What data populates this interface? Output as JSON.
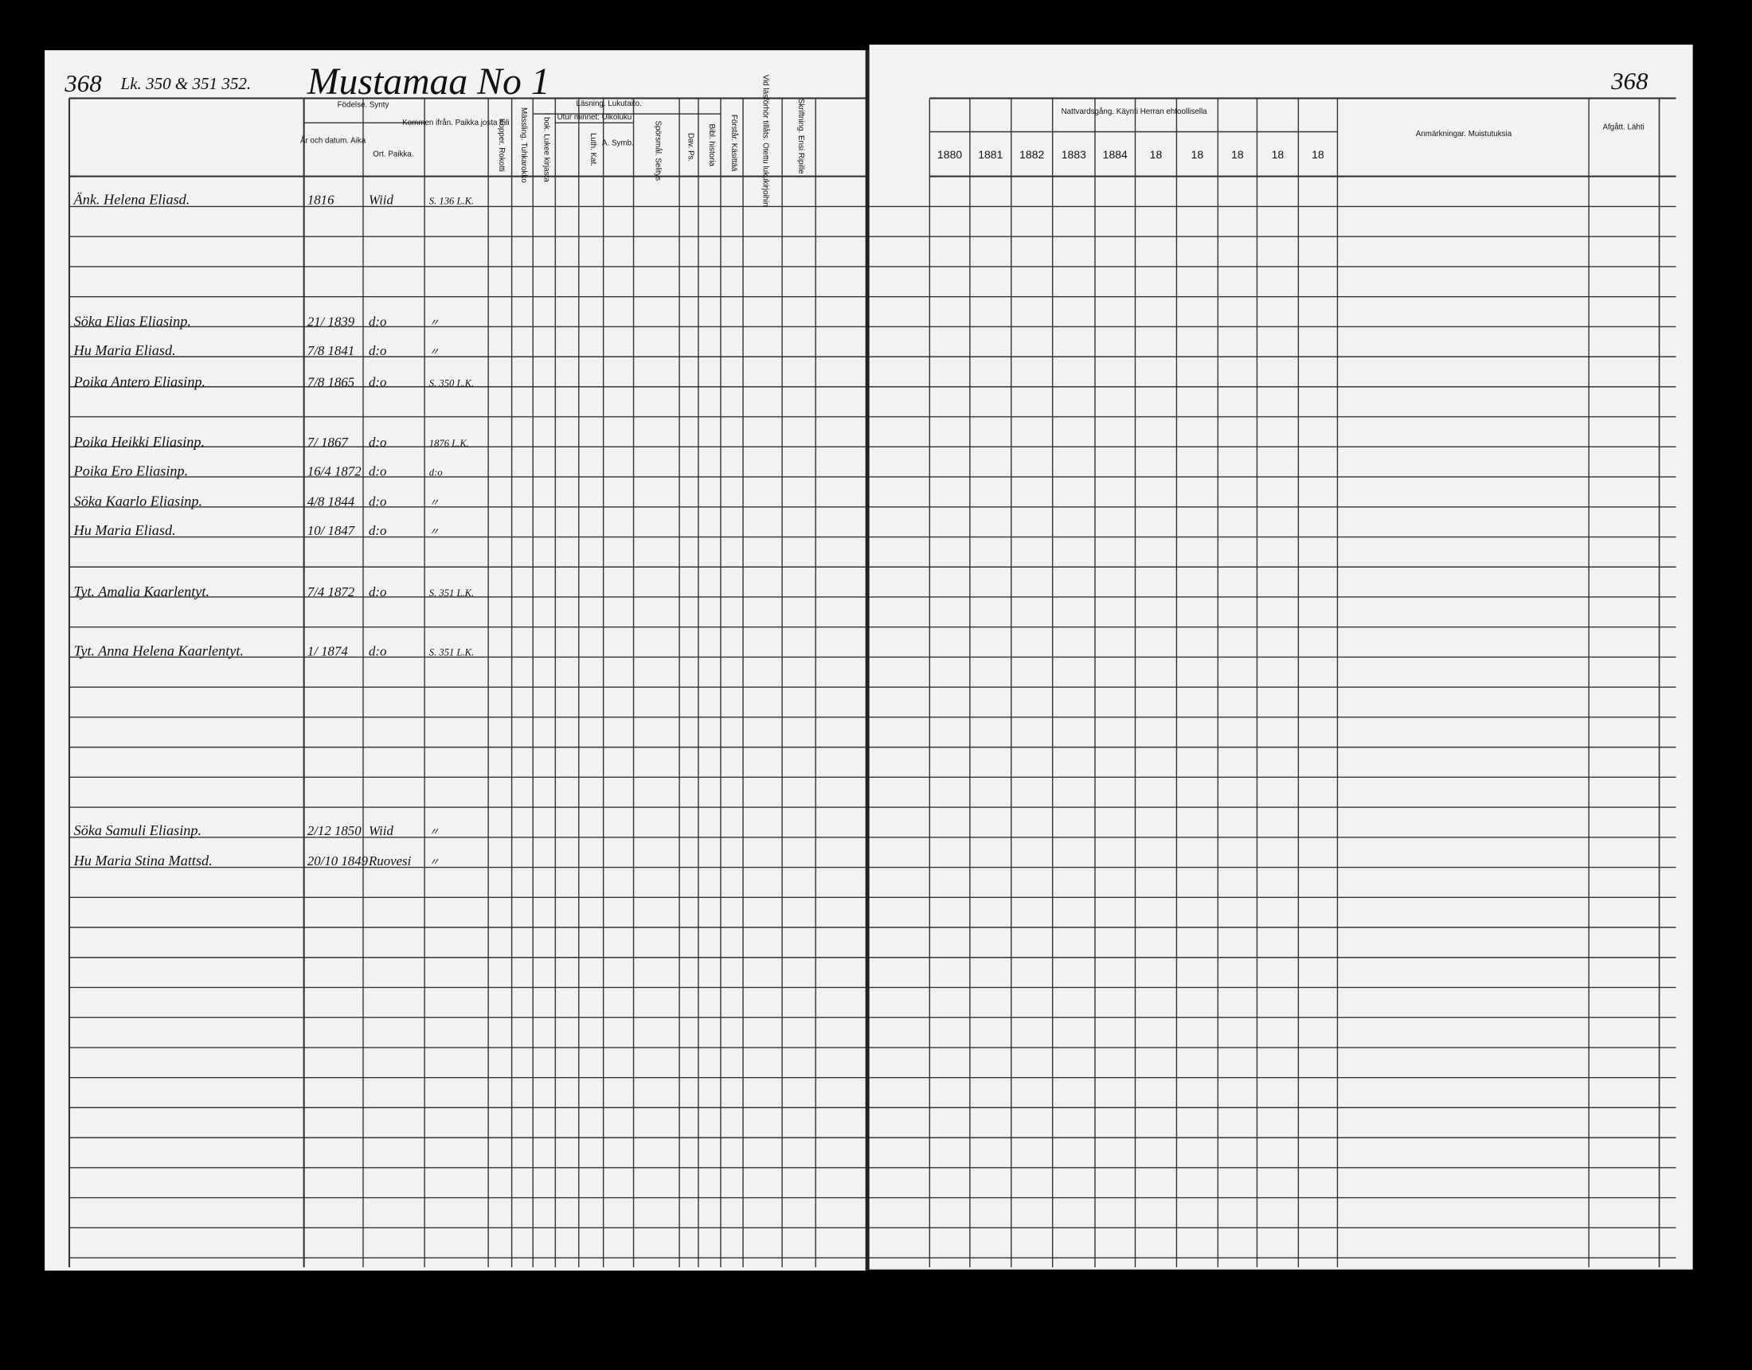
{
  "header": {
    "page_left": "368",
    "heading": "Lk. 350 & 351 352.",
    "farm": "Mustamaa No 1",
    "page_right": "368"
  },
  "columns_left": [
    "Födelse. Synty",
    "År och datum. Aika",
    "Ort. Paikka.",
    "Kommen ifrån. Paikka josta tuli",
    "Kopper. Rokotti",
    "Mässling. Tuhkarokko",
    "Läsning. Lukutaito.",
    "I bok. Lukee kirjasta",
    "Utur minnet: Ulkoluku",
    "Luth. Kat.",
    "A. Symb.",
    "Spörsmål. Selitys",
    "Dav. Ps.",
    "Bibl. historia",
    "Förstår. Käsittää",
    "Vid läsförhör tillåts. Otettu lukukirjoihin",
    "Skriftning. Ensi Ripille"
  ],
  "columns_right": [
    "Nattvardsgång. Käynti Herran ehtoollisella",
    "Anmärkningar. Muistutuksia",
    "Afgått. Lähti"
  ],
  "years": [
    "1880",
    "1881",
    "1882",
    "1883",
    "1884",
    "18",
    "18",
    "18",
    "18",
    "18"
  ],
  "entries": [
    {
      "name": "Änk. Helena Eliasd.",
      "born": "1816",
      "place": "Wiid",
      "from": "S. 136 L.K."
    },
    {
      "name": "Söka Elias Eliasinp.",
      "born": "21/ 1839",
      "place": "d:o",
      "from": "〃"
    },
    {
      "name": "Hu Maria Eliasd.",
      "born": "7/8 1841",
      "place": "d:o",
      "from": "〃"
    },
    {
      "name": "Poika Antero Eliasinp.",
      "born": "7/8 1865",
      "place": "d:o",
      "from": "S. 350 L.K."
    },
    {
      "name": "Poika Heikki Eliasinp.",
      "born": "7/ 1867",
      "place": "d:o",
      "from": "1876 L.K."
    },
    {
      "name": "Poika Ero Eliasinp.",
      "born": "16/4 1872",
      "place": "d:o",
      "from": "d:o"
    },
    {
      "name": "Söka Kaarlo Eliasinp.",
      "born": "4/8 1844",
      "place": "d:o",
      "from": "〃"
    },
    {
      "name": "Hu Maria Eliasd.",
      "born": "10/ 1847",
      "place": "d:o",
      "from": "〃"
    },
    {
      "name": "Tyt. Amalia Kaarlentyt.",
      "born": "7/4 1872",
      "place": "d:o",
      "from": "S. 351 L.K."
    },
    {
      "name": "Tyt. Anna Helena Kaarlentyt.",
      "born": "1/ 1874",
      "place": "d:o",
      "from": "S. 351 L.K."
    },
    {
      "name": "Söka Samuli Eliasinp.",
      "born": "2/12 1850",
      "place": "Wiid",
      "from": "〃"
    },
    {
      "name": "Hu Maria Stina Mattsd.",
      "born": "20/10 1849",
      "place": "Ruovesi",
      "from": "〃"
    }
  ]
}
